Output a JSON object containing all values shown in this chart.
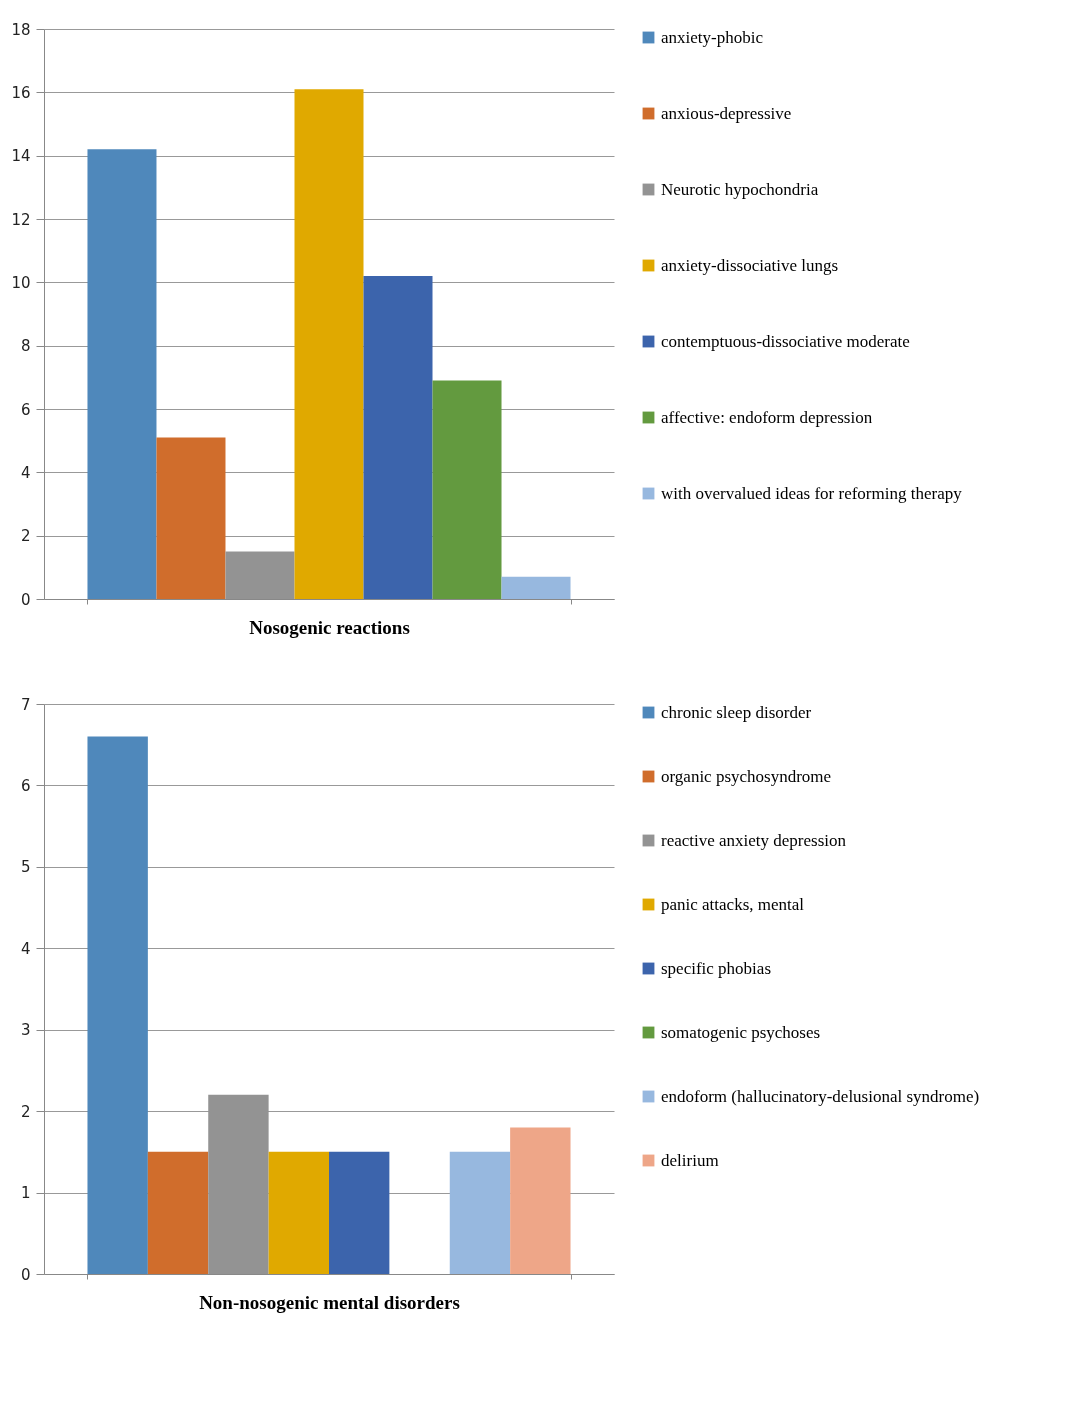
{
  "chart_data": [
    {
      "type": "bar",
      "categories": [
        "Nosogenic reactions"
      ],
      "ylim": [
        0,
        18
      ],
      "yticks": [
        0,
        2,
        4,
        6,
        8,
        10,
        12,
        14,
        16,
        18
      ],
      "grid": "y",
      "legend": "right",
      "series": [
        {
          "name": "anxiety-phobic",
          "color": "#4f88bb",
          "values": [
            14.2
          ]
        },
        {
          "name": "anxious-depressive",
          "color": "#d06d2c",
          "values": [
            5.1
          ]
        },
        {
          "name": "Neurotic hypochondria",
          "color": "#939393",
          "values": [
            1.5
          ]
        },
        {
          "name": "anxiety-dissociative lungs",
          "color": "#e0a900",
          "values": [
            16.1
          ]
        },
        {
          "name": "contemptuous-dissociative moderate",
          "color": "#3c64ac",
          "values": [
            10.2
          ]
        },
        {
          "name": "affective: endoform depression",
          "color": "#639a3f",
          "values": [
            6.9
          ]
        },
        {
          "name": "with overvalued ideas for reforming therapy",
          "color": "#97b8df",
          "values": [
            0.7
          ]
        }
      ]
    },
    {
      "type": "bar",
      "categories": [
        "Non-nosogenic mental disorders"
      ],
      "ylim": [
        0,
        7
      ],
      "yticks": [
        0,
        1,
        2,
        3,
        4,
        5,
        6,
        7
      ],
      "grid": "y",
      "legend": "right",
      "series": [
        {
          "name": "chronic sleep disorder",
          "color": "#4f88bb",
          "values": [
            6.6
          ]
        },
        {
          "name": "organic psychosyndrome",
          "color": "#d06d2c",
          "values": [
            1.5
          ]
        },
        {
          "name": "reactive anxiety depression",
          "color": "#939393",
          "values": [
            2.2
          ]
        },
        {
          "name": "panic attacks, mental",
          "color": "#e0a900",
          "values": [
            1.5
          ]
        },
        {
          "name": "specific phobias",
          "color": "#3c64ac",
          "values": [
            1.5
          ]
        },
        {
          "name": "somatogenic psychoses",
          "color": "#639a3f",
          "values": [
            null
          ]
        },
        {
          "name": "endoform (hallucinatory-delusional syndrome)",
          "color": "#97b8df",
          "values": [
            1.5
          ]
        },
        {
          "name": "delirium",
          "color": "#eea688",
          "values": [
            1.8
          ]
        }
      ]
    }
  ]
}
